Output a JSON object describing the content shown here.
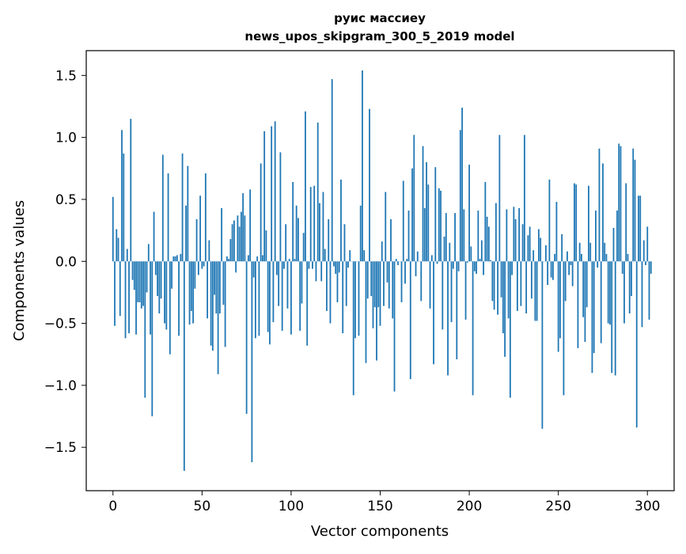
{
  "chart_data": {
    "type": "bar",
    "title": "руис массиеу\nnews_upos_skipgram_300_5_2019 model",
    "title_lines": [
      "руис массиеу",
      "news_upos_skipgram_300_5_2019 model"
    ],
    "xlabel": "Vector components",
    "ylabel": "Components values",
    "xlim": [
      -15,
      315
    ],
    "ylim": [
      -1.85,
      1.7
    ],
    "xticks": [
      0,
      50,
      100,
      150,
      200,
      250,
      300
    ],
    "xtick_labels": [
      "0",
      "50",
      "100",
      "150",
      "200",
      "250",
      "300"
    ],
    "yticks": [
      -1.5,
      -1.0,
      -0.5,
      0.0,
      0.5,
      1.0,
      1.5
    ],
    "ytick_labels": [
      "−1.5",
      "−1.0",
      "−0.5",
      "0.0",
      "0.5",
      "1.0",
      "1.5"
    ],
    "grid": false,
    "bar_color": "#1f77b4",
    "series": [
      {
        "values": [
          0.52,
          -0.52,
          0.26,
          0.19,
          -0.44,
          1.06,
          0.87,
          -0.62,
          0.1,
          -0.58,
          1.15,
          -0.15,
          -0.23,
          -0.59,
          -0.33,
          -0.33,
          -0.38,
          -0.36,
          -1.1,
          -0.25,
          0.14,
          -0.59,
          -1.25,
          0.4,
          -0.11,
          -0.28,
          -0.42,
          -0.3,
          0.86,
          -0.5,
          -0.55,
          0.71,
          -0.75,
          -0.22,
          0.04,
          0.04,
          0.05,
          -0.6,
          0.06,
          0.87,
          -1.69,
          0.45,
          0.77,
          -0.51,
          -0.4,
          -0.5,
          -0.22,
          0.34,
          -0.11,
          0.53,
          -0.06,
          -0.04,
          0.71,
          -0.46,
          0.17,
          -0.68,
          -0.72,
          -0.27,
          -0.42,
          -0.91,
          -0.42,
          0.43,
          -0.35,
          -0.69,
          0.04,
          0.02,
          0.18,
          0.3,
          0.33,
          -0.09,
          0.37,
          0.28,
          0.4,
          0.55,
          0.37,
          -1.23,
          0.05,
          0.58,
          -1.62,
          -0.13,
          -0.62,
          0.04,
          -0.6,
          0.79,
          0.05,
          1.05,
          0.25,
          -0.57,
          -0.67,
          1.09,
          -0.49,
          1.13,
          -0.11,
          -0.36,
          0.88,
          -0.56,
          -0.06,
          0.3,
          -0.38,
          0.02,
          -0.59,
          0.64,
          0.02,
          0.45,
          0.35,
          -0.56,
          -0.34,
          0.23,
          1.21,
          -0.68,
          -0.06,
          0.6,
          -0.06,
          0.61,
          -0.16,
          1.12,
          0.47,
          -0.16,
          0.56,
          0.1,
          -0.4,
          0.34,
          -0.5,
          1.47,
          -0.04,
          -0.1,
          -0.33,
          -0.09,
          0.66,
          -0.58,
          0.3,
          -0.36,
          -0.05,
          0.09,
          0.0,
          -1.08,
          -0.62,
          0.0,
          -0.6,
          0.45,
          1.54,
          0.09,
          -0.82,
          -0.3,
          1.23,
          -0.28,
          -0.54,
          -0.37,
          -0.8,
          -0.37,
          -0.52,
          0.16,
          -0.36,
          0.56,
          -0.17,
          -0.38,
          0.34,
          -0.46,
          -1.05,
          0.02,
          -0.03,
          0.0,
          -0.33,
          0.65,
          -0.18,
          0.02,
          0.41,
          -0.95,
          0.75,
          1.02,
          -0.12,
          0.08,
          0.0,
          -0.32,
          0.93,
          0.43,
          0.8,
          0.62,
          -0.38,
          0.05,
          -0.83,
          0.76,
          -0.02,
          0.59,
          0.57,
          -0.55,
          0.2,
          0.39,
          -0.92,
          0.15,
          -0.49,
          -0.06,
          0.39,
          -0.79,
          -0.08,
          1.06,
          1.24,
          0.42,
          -0.47,
          -0.01,
          0.78,
          0.12,
          -1.08,
          -0.08,
          -0.1,
          0.41,
          0.02,
          0.17,
          -0.11,
          0.64,
          0.36,
          0.28,
          0.01,
          -0.32,
          -0.39,
          0.47,
          -0.43,
          1.02,
          -0.29,
          -0.58,
          -0.77,
          0.42,
          -0.46,
          -1.1,
          -0.11,
          0.44,
          0.34,
          -0.4,
          0.43,
          -0.36,
          0.3,
          1.02,
          -0.42,
          0.21,
          0.28,
          -0.3,
          0.09,
          -0.48,
          -0.48,
          0.26,
          0.19,
          -1.35,
          0.0,
          0.13,
          -0.19,
          0.66,
          -0.13,
          -0.15,
          0.06,
          0.48,
          -0.73,
          -0.62,
          0.22,
          -1.08,
          -0.32,
          0.08,
          -0.11,
          -0.03,
          -0.2,
          0.63,
          0.62,
          -0.7,
          0.15,
          0.06,
          -0.45,
          -0.65,
          -0.37,
          0.61,
          0.15,
          -0.9,
          -0.74,
          0.41,
          -0.05,
          0.91,
          -0.66,
          0.79,
          0.15,
          0.06,
          -0.5,
          -0.51,
          -0.9,
          0.27,
          -0.92,
          0.41,
          0.95,
          0.93,
          -0.1,
          -0.5,
          0.63,
          0.06,
          -0.42,
          -0.28,
          0.91,
          0.82,
          -1.34,
          0.53,
          0.53,
          -0.53,
          0.17,
          -0.03,
          0.28,
          -0.47,
          -0.1
        ]
      }
    ]
  }
}
